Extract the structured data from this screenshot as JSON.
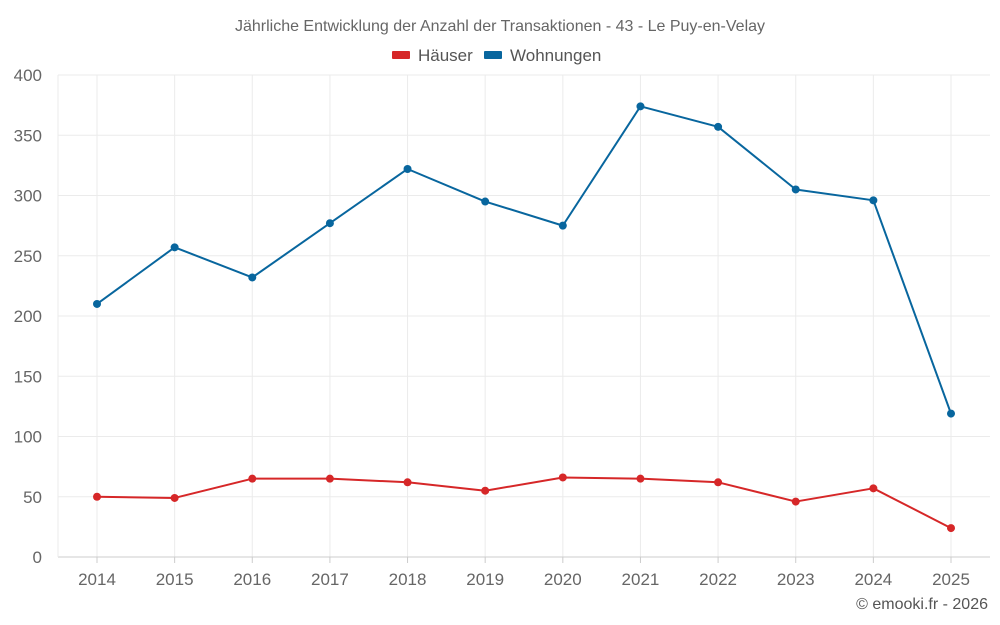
{
  "chart_data": {
    "type": "line",
    "title": "Jährliche Entwicklung der Anzahl der Transaktionen - 43 - Le Puy-en-Velay",
    "categories": [
      "2014",
      "2015",
      "2016",
      "2017",
      "2018",
      "2019",
      "2020",
      "2021",
      "2022",
      "2023",
      "2024",
      "2025"
    ],
    "series": [
      {
        "name": "Häuser",
        "color": "#d62728",
        "values": [
          50,
          49,
          65,
          65,
          62,
          55,
          66,
          65,
          62,
          46,
          57,
          24
        ]
      },
      {
        "name": "Wohnungen",
        "color": "#08669e",
        "values": [
          210,
          257,
          232,
          277,
          322,
          295,
          275,
          374,
          357,
          305,
          296,
          119
        ]
      }
    ],
    "ylim": [
      0,
      400
    ],
    "yticks": [
      0,
      50,
      100,
      150,
      200,
      250,
      300,
      350,
      400
    ],
    "xlabel": "",
    "ylabel": "",
    "grid": true,
    "legend_position": "top-center"
  },
  "credit": "© emooki.fr - 2026"
}
